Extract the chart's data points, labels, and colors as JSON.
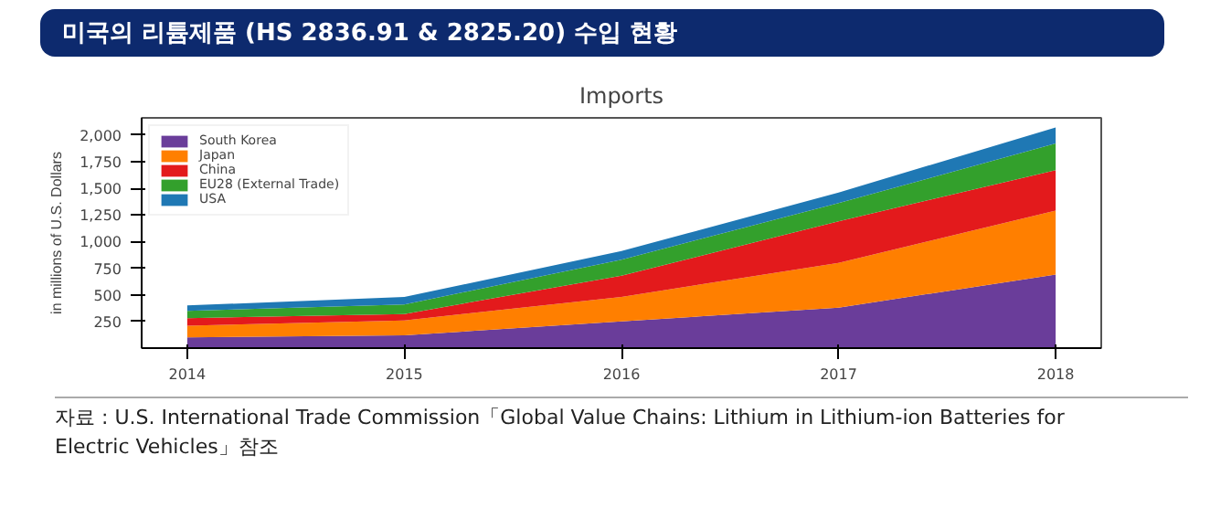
{
  "chart_data": {
    "type": "area",
    "stacked": true,
    "title": "미국의 리튬제품 (HS 2836.91 & 2825.20) 수입 현황",
    "subtitle": "Imports",
    "ylabel": "in millions of U.S. Dollars",
    "x": [
      2014,
      2015,
      2016,
      2017,
      2018
    ],
    "series": [
      {
        "name": "South Korea",
        "color": "#6a3d9a",
        "values": [
          100,
          120,
          250,
          380,
          690
        ]
      },
      {
        "name": "Japan",
        "color": "#ff7f00",
        "values": [
          110,
          140,
          230,
          420,
          600
        ]
      },
      {
        "name": "China",
        "color": "#e31a1c",
        "values": [
          70,
          60,
          200,
          390,
          380
        ]
      },
      {
        "name": "EU28 (External Trade)",
        "color": "#33a02c",
        "values": [
          70,
          90,
          150,
          170,
          250
        ]
      },
      {
        "name": "USA",
        "color": "#1f78b4",
        "values": [
          50,
          70,
          80,
          100,
          150
        ]
      }
    ],
    "xlim": [
      2013.79,
      2018.21
    ],
    "ylim": [
      0,
      2160
    ],
    "xticks": [
      2014,
      2015,
      2016,
      2017,
      2018
    ],
    "yticks": [
      250,
      500,
      750,
      {
        "value": 1000,
        "label": "1,000"
      },
      {
        "value": 1250,
        "label": "1,250"
      },
      {
        "value": 1500,
        "label": "1,500"
      },
      {
        "value": 1750,
        "label": "1,750"
      },
      {
        "value": 2000,
        "label": "2,000"
      }
    ],
    "grid": false,
    "legend": "top left",
    "annotations": [
      "자료 : U.S. International Trade Commission「Global Value Chains: Lithium in Lithium-ion Batteries for Electric Vehicles」참조"
    ]
  }
}
